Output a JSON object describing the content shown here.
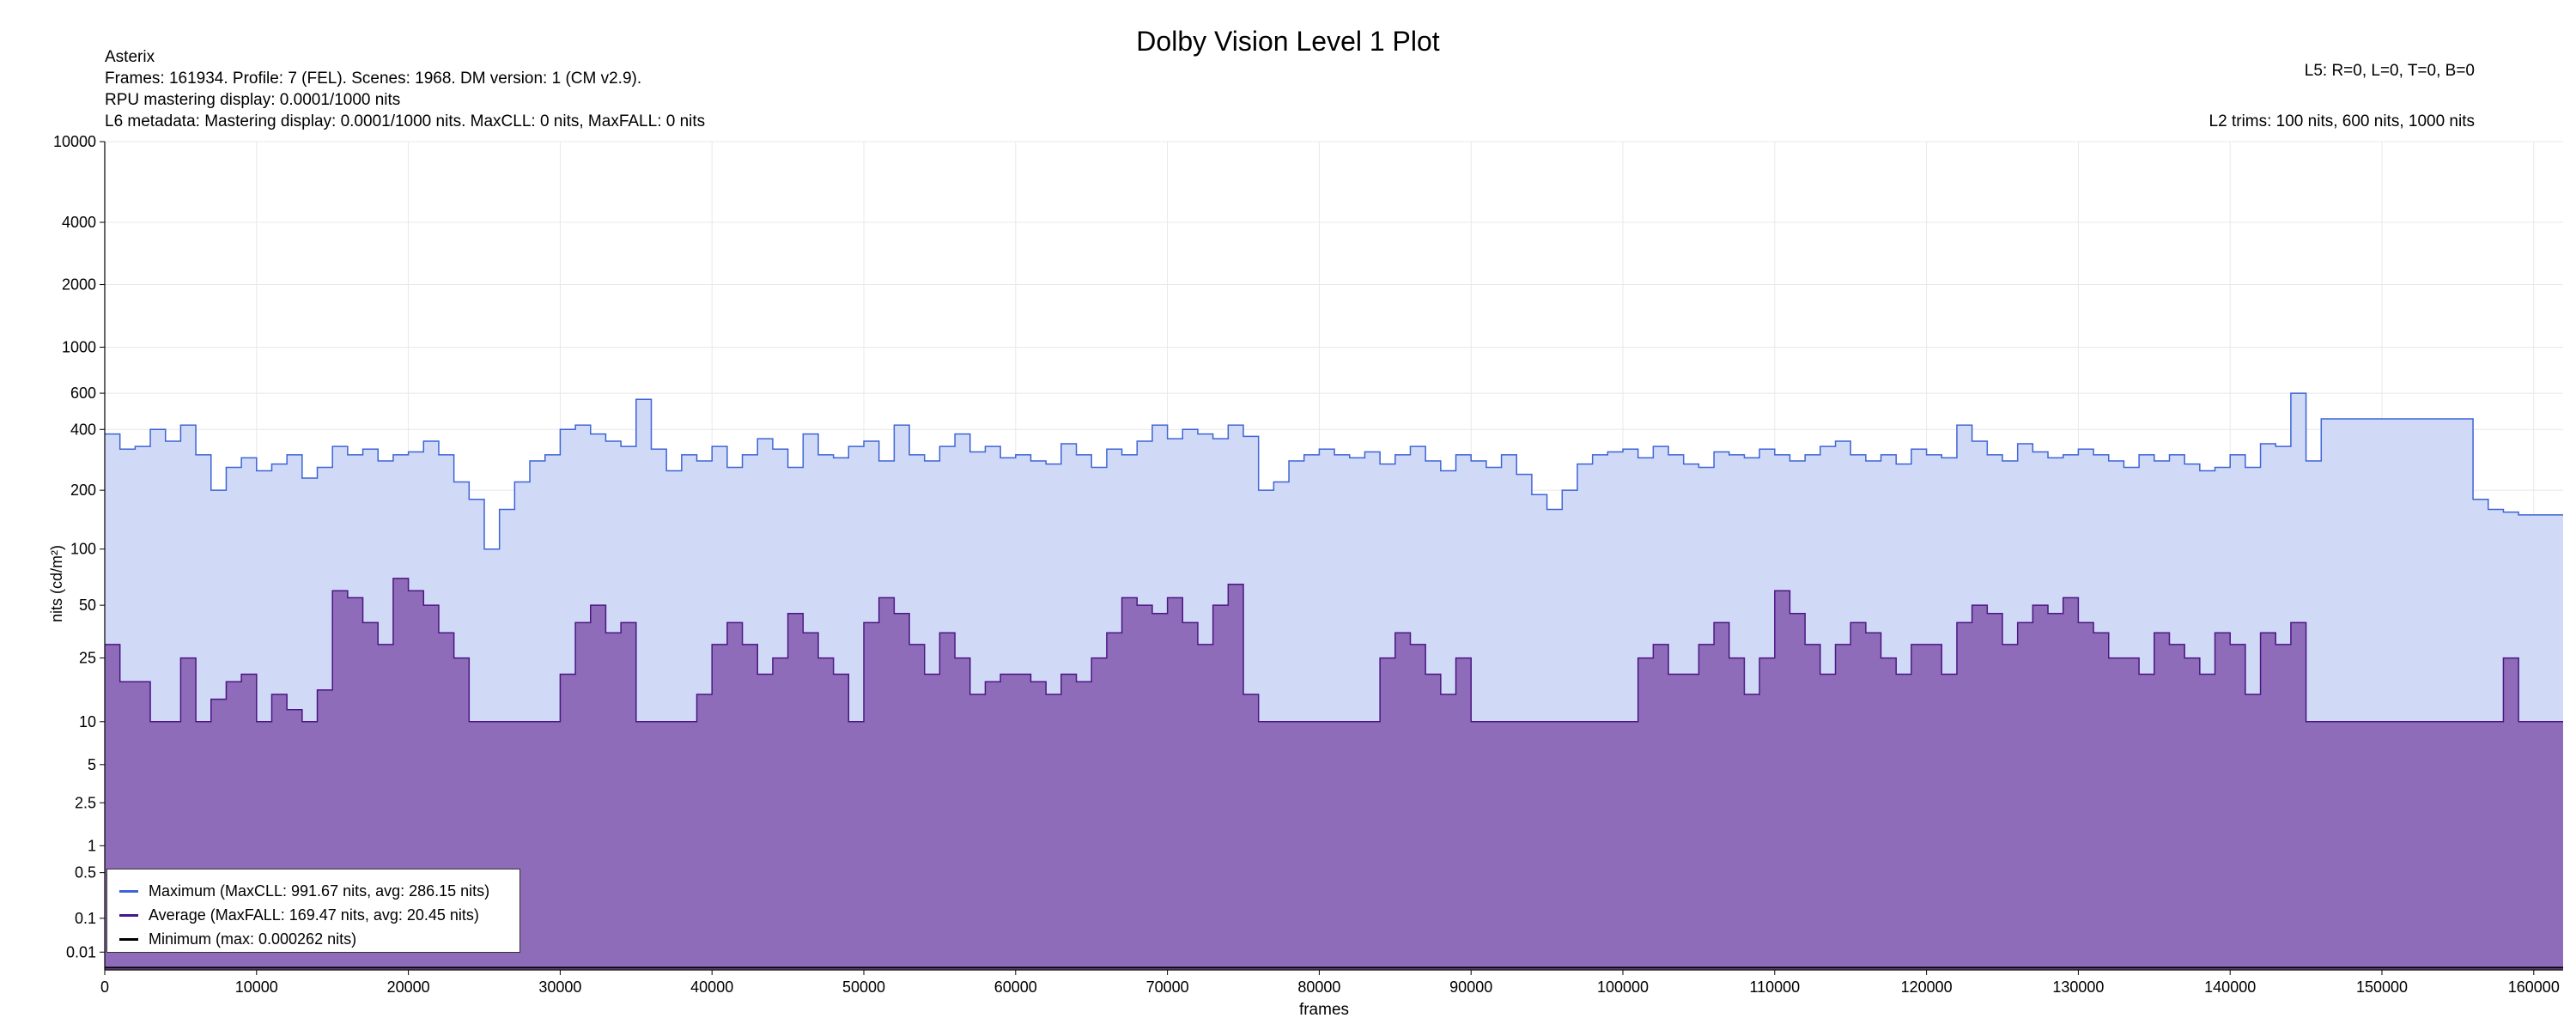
{
  "header": {
    "title": "Dolby Vision Level 1 Plot",
    "name": "Asterix",
    "info_line1": "Frames: 161934. Profile: 7 (FEL). Scenes: 1968. DM version: 1 (CM v2.9).",
    "info_line2": "RPU mastering display: 0.0001/1000 nits",
    "info_line3": "L6 metadata: Mastering display: 0.0001/1000 nits. MaxCLL: 0 nits, MaxFALL: 0 nits",
    "l5": "L5: R=0, L=0, T=0, B=0",
    "l2": "L2 trims: 100 nits, 600 nits, 1000 nits"
  },
  "colors": {
    "maximum_line": "#3d63d6",
    "maximum_fill": "#d0daf7",
    "average_line": "#4b1583",
    "average_fill": "#8f6cb9",
    "minimum_line": "#000000",
    "grid": "#e8e8e8"
  },
  "chart_data": {
    "type": "area",
    "title": "Dolby Vision Level 1 Plot",
    "xlabel": "frames",
    "ylabel": "nits (cd/m²)",
    "xlim": [
      0,
      161934
    ],
    "ylim": [
      0,
      10000
    ],
    "y_scale": "perceptual-quantizer (PQ)",
    "x_ticks": [
      0,
      10000,
      20000,
      30000,
      40000,
      50000,
      60000,
      70000,
      80000,
      90000,
      100000,
      110000,
      120000,
      130000,
      140000,
      150000,
      160000
    ],
    "y_ticks": [
      0.01,
      0.1,
      0.5,
      1,
      2.5,
      5,
      10,
      25,
      50,
      100,
      200,
      400,
      600,
      1000,
      2000,
      4000,
      10000
    ],
    "grid": true,
    "legend_position": "bottom-left",
    "series": [
      {
        "name": "Maximum (MaxCLL: 991.67 nits, avg: 286.15 nits)",
        "key": "maximum",
        "x": [
          0,
          1000,
          2000,
          3000,
          4000,
          5000,
          6000,
          7000,
          8000,
          9000,
          10000,
          11000,
          12000,
          13000,
          14000,
          15000,
          16000,
          17000,
          18000,
          19000,
          20000,
          21000,
          22000,
          23000,
          24000,
          25000,
          26000,
          27000,
          28000,
          29000,
          30000,
          31000,
          32000,
          33000,
          34000,
          35000,
          36000,
          37000,
          38000,
          39000,
          40000,
          41000,
          42000,
          43000,
          44000,
          45000,
          46000,
          47000,
          48000,
          49000,
          50000,
          51000,
          52000,
          53000,
          54000,
          55000,
          56000,
          57000,
          58000,
          59000,
          60000,
          61000,
          62000,
          63000,
          64000,
          65000,
          66000,
          67000,
          68000,
          69000,
          70000,
          71000,
          72000,
          73000,
          74000,
          75000,
          76000,
          77000,
          78000,
          79000,
          80000,
          81000,
          82000,
          83000,
          84000,
          85000,
          86000,
          87000,
          88000,
          89000,
          90000,
          91000,
          92000,
          93000,
          94000,
          95000,
          96000,
          97000,
          98000,
          99000,
          100000,
          101000,
          102000,
          103000,
          104000,
          105000,
          106000,
          107000,
          108000,
          109000,
          110000,
          111000,
          112000,
          113000,
          114000,
          115000,
          116000,
          117000,
          118000,
          119000,
          120000,
          121000,
          122000,
          123000,
          124000,
          125000,
          126000,
          127000,
          128000,
          129000,
          130000,
          131000,
          132000,
          133000,
          134000,
          135000,
          136000,
          137000,
          138000,
          139000,
          140000,
          141000,
          142000,
          143000,
          144000,
          145000,
          146000,
          147000,
          148000,
          149000,
          150000,
          151000,
          152000,
          153000,
          154000,
          155000,
          156000,
          157000,
          158000,
          159000,
          160000,
          161000,
          161934
        ],
        "values": [
          380,
          320,
          330,
          400,
          350,
          420,
          300,
          200,
          260,
          290,
          250,
          270,
          300,
          230,
          260,
          330,
          300,
          320,
          280,
          300,
          310,
          350,
          300,
          220,
          180,
          100,
          160,
          220,
          280,
          300,
          400,
          420,
          380,
          350,
          330,
          560,
          320,
          250,
          300,
          280,
          330,
          260,
          300,
          360,
          320,
          260,
          380,
          300,
          290,
          330,
          350,
          280,
          420,
          300,
          280,
          330,
          380,
          310,
          330,
          290,
          300,
          280,
          270,
          340,
          300,
          260,
          320,
          300,
          350,
          420,
          360,
          400,
          380,
          360,
          420,
          370,
          200,
          220,
          280,
          300,
          320,
          300,
          290,
          310,
          270,
          300,
          330,
          280,
          250,
          300,
          280,
          260,
          300,
          240,
          190,
          160,
          200,
          270,
          300,
          310,
          320,
          290,
          330,
          300,
          270,
          260,
          310,
          300,
          290,
          320,
          300,
          280,
          300,
          330,
          350,
          300,
          280,
          300,
          270,
          320,
          300,
          290,
          420,
          350,
          300,
          280,
          340,
          310,
          290,
          300,
          320,
          300,
          280,
          260,
          300,
          280,
          300,
          270,
          250,
          260,
          300,
          260,
          340,
          330,
          600,
          280,
          450,
          450,
          450,
          450,
          450,
          450,
          450,
          450,
          450,
          450,
          180,
          160,
          155,
          150,
          150,
          150,
          100
        ]
      },
      {
        "name": "Average (MaxFALL: 169.47 nits, avg: 20.45 nits)",
        "key": "average",
        "x": [
          0,
          1000,
          2000,
          3000,
          4000,
          5000,
          6000,
          7000,
          8000,
          9000,
          10000,
          11000,
          12000,
          13000,
          14000,
          15000,
          16000,
          17000,
          18000,
          19000,
          20000,
          21000,
          22000,
          23000,
          24000,
          25000,
          26000,
          27000,
          28000,
          29000,
          30000,
          31000,
          32000,
          33000,
          34000,
          35000,
          36000,
          37000,
          38000,
          39000,
          40000,
          41000,
          42000,
          43000,
          44000,
          45000,
          46000,
          47000,
          48000,
          49000,
          50000,
          51000,
          52000,
          53000,
          54000,
          55000,
          56000,
          57000,
          58000,
          59000,
          60000,
          61000,
          62000,
          63000,
          64000,
          65000,
          66000,
          67000,
          68000,
          69000,
          70000,
          71000,
          72000,
          73000,
          74000,
          75000,
          76000,
          77000,
          78000,
          79000,
          80000,
          81000,
          82000,
          83000,
          84000,
          85000,
          86000,
          87000,
          88000,
          89000,
          90000,
          91000,
          92000,
          93000,
          94000,
          95000,
          96000,
          97000,
          98000,
          99000,
          100000,
          101000,
          102000,
          103000,
          104000,
          105000,
          106000,
          107000,
          108000,
          109000,
          110000,
          111000,
          112000,
          113000,
          114000,
          115000,
          116000,
          117000,
          118000,
          119000,
          120000,
          121000,
          122000,
          123000,
          124000,
          125000,
          126000,
          127000,
          128000,
          129000,
          130000,
          131000,
          132000,
          133000,
          134000,
          135000,
          136000,
          137000,
          138000,
          139000,
          140000,
          141000,
          142000,
          143000,
          144000,
          145000,
          146000,
          147000,
          148000,
          149000,
          150000,
          151000,
          152000,
          153000,
          154000,
          155000,
          156000,
          157000,
          158000,
          159000,
          160000,
          161000,
          161934
        ],
        "values": [
          30,
          18,
          18,
          10,
          10,
          25,
          10,
          14,
          18,
          20,
          10,
          15,
          12,
          10,
          16,
          60,
          55,
          40,
          30,
          70,
          60,
          50,
          35,
          25,
          10,
          10,
          10,
          10,
          10,
          10,
          20,
          40,
          50,
          35,
          40,
          10,
          10,
          10,
          10,
          15,
          30,
          40,
          30,
          20,
          25,
          45,
          35,
          25,
          20,
          10,
          40,
          55,
          45,
          30,
          20,
          35,
          25,
          15,
          18,
          20,
          20,
          18,
          15,
          20,
          18,
          25,
          35,
          55,
          50,
          45,
          55,
          40,
          30,
          50,
          65,
          15,
          10,
          10,
          10,
          10,
          10,
          10,
          10,
          10,
          25,
          35,
          30,
          20,
          15,
          25,
          10,
          10,
          10,
          10,
          10,
          10,
          10,
          10,
          10,
          10,
          10,
          25,
          30,
          20,
          20,
          30,
          40,
          25,
          15,
          25,
          60,
          45,
          30,
          20,
          30,
          40,
          35,
          25,
          20,
          30,
          30,
          20,
          40,
          50,
          45,
          30,
          40,
          50,
          45,
          55,
          40,
          35,
          25,
          25,
          20,
          35,
          30,
          25,
          20,
          35,
          30,
          15,
          35,
          30,
          40,
          10,
          10,
          10,
          10,
          10,
          10,
          10,
          10,
          10,
          10,
          10,
          10,
          10,
          25,
          10,
          10,
          10,
          10
        ]
      },
      {
        "name": "Minimum (max: 0.000262 nits)",
        "key": "minimum",
        "x": [
          0,
          161934
        ],
        "values": [
          0.0001,
          0.0001
        ]
      }
    ]
  }
}
